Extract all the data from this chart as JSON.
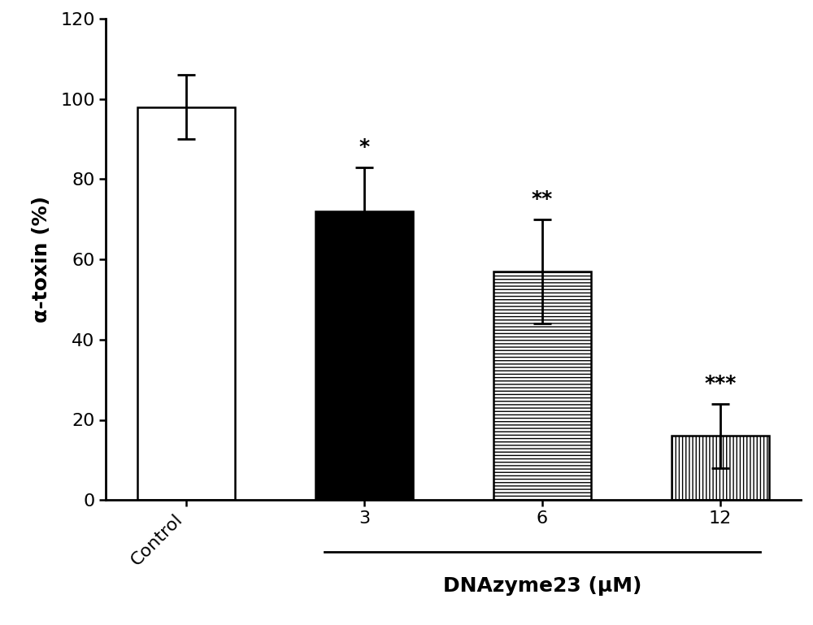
{
  "categories": [
    "Control",
    "3",
    "6",
    "12"
  ],
  "values": [
    98,
    72,
    57,
    16
  ],
  "errors": [
    8,
    11,
    13,
    8
  ],
  "bar_colors": [
    "white",
    "black",
    "white",
    "white"
  ],
  "bar_hatches": [
    null,
    null,
    "horizontal",
    "vertical"
  ],
  "bar_edgecolors": [
    "black",
    "black",
    "black",
    "black"
  ],
  "significance": [
    "",
    "*",
    "**",
    "***"
  ],
  "sig_fontsize": 18,
  "ylabel": "α-toxin (%)",
  "xlabel_bracket": "DNAzyme23 (μM)",
  "ylim": [
    0,
    120
  ],
  "yticks": [
    0,
    20,
    40,
    60,
    80,
    100,
    120
  ],
  "tick_fontsize": 16,
  "label_fontsize": 18,
  "bar_width": 0.55,
  "background_color": "#ffffff"
}
